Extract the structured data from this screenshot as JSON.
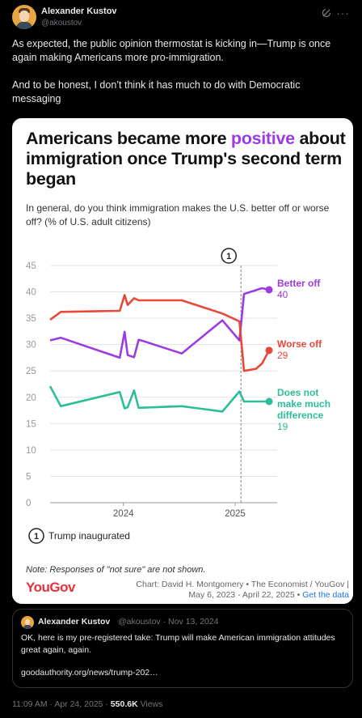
{
  "post": {
    "author_name": "Alexander Kustov",
    "author_handle": "@akoustov",
    "text_paragraphs": [
      "As expected, the public opinion thermostat is kicking in—Trump is once again making Americans more pro-immigration.",
      "And to be honest, I don’t think it has much to do with Democratic messaging"
    ],
    "time": "11:09 AM · Apr 24, 2025 · ",
    "views_count": "550.6K",
    "views_label": " Views"
  },
  "card": {
    "title_before": "Americans became more ",
    "title_highlight": "positive",
    "title_after": " about immigration once Trump's second term began",
    "subtitle": "In general, do you think immigration makes the U.S. better off or worse off? (% of U.S. adult citizens)",
    "annotation_number": "1",
    "annotation_label": "Trump inaugurated",
    "note": "Note: Responses of \"not sure\" are not shown.",
    "logo": "YouGov",
    "credit_line1": "Chart: David H. Montgomery • The Economist / YouGov |",
    "credit_line2_prefix": "May 6, 2023 - April 22, 2025 • ",
    "credit_link": "Get the data",
    "colors": {
      "purple": "#9b3be0",
      "red": "#e8473a",
      "teal": "#2dbd9a",
      "accent": "#9b3be0"
    }
  },
  "chart_data": {
    "type": "line",
    "x_range": [
      "2023-05-06",
      "2025-04-22"
    ],
    "x_ticks": [
      "2024",
      "2025"
    ],
    "ylim": [
      0,
      45
    ],
    "y_ticks": [
      "0",
      "5",
      "10",
      "15",
      "20",
      "25",
      "30",
      "35",
      "40",
      "45"
    ],
    "series": [
      {
        "name": "Better off",
        "color": "#9b3be0",
        "end_label": "40",
        "points": [
          [
            "2023-05-06",
            30.8
          ],
          [
            "2023-06-10",
            31.3
          ],
          [
            "2023-12-20",
            27.5
          ],
          [
            "2024-01-05",
            32.4
          ],
          [
            "2024-01-15",
            28.0
          ],
          [
            "2024-02-05",
            27.6
          ],
          [
            "2024-02-20",
            30.9
          ],
          [
            "2024-03-10",
            30.6
          ],
          [
            "2024-07-10",
            28.3
          ],
          [
            "2024-11-20",
            34.6
          ],
          [
            "2025-01-15",
            30.8
          ],
          [
            "2025-01-30",
            39.6
          ],
          [
            "2025-03-30",
            40.7
          ],
          [
            "2025-04-22",
            40.4
          ]
        ]
      },
      {
        "name": "Worse off",
        "color": "#e8473a",
        "end_label": "29",
        "points": [
          [
            "2023-05-06",
            34.7
          ],
          [
            "2023-06-10",
            36.2
          ],
          [
            "2023-12-20",
            36.4
          ],
          [
            "2024-01-05",
            39.4
          ],
          [
            "2024-01-15",
            37.5
          ],
          [
            "2024-02-05",
            38.8
          ],
          [
            "2024-02-20",
            38.4
          ],
          [
            "2024-07-10",
            38.4
          ],
          [
            "2024-11-20",
            35.9
          ],
          [
            "2025-01-15",
            34.4
          ],
          [
            "2025-01-30",
            25.0
          ],
          [
            "2025-03-10",
            25.4
          ],
          [
            "2025-03-30",
            26.4
          ],
          [
            "2025-04-22",
            28.9
          ]
        ]
      },
      {
        "name": "Does not make much difference",
        "label_lines": [
          "Does not",
          "make much",
          "difference"
        ],
        "color": "#2dbd9a",
        "end_label": "19",
        "points": [
          [
            "2023-05-06",
            22.1
          ],
          [
            "2023-06-10",
            18.3
          ],
          [
            "2023-12-20",
            21.0
          ],
          [
            "2024-01-05",
            17.9
          ],
          [
            "2024-01-15",
            18.1
          ],
          [
            "2024-02-05",
            21.3
          ],
          [
            "2024-02-20",
            18.0
          ],
          [
            "2024-07-10",
            18.3
          ],
          [
            "2024-11-20",
            17.3
          ],
          [
            "2025-01-15",
            21.1
          ],
          [
            "2025-01-30",
            19.2
          ],
          [
            "2025-04-22",
            19.2
          ]
        ]
      }
    ],
    "annotations": [
      {
        "x": "2025-01-20",
        "label": "1"
      }
    ],
    "grid": true
  },
  "quote": {
    "author_name": "Alexander Kustov",
    "meta": "@akoustov · Nov 13, 2024",
    "text": "OK, here is my pre-registered take: Trump will make American immigration attitudes great again, again.",
    "link": "goodauthority.org/news/trump-202…"
  }
}
